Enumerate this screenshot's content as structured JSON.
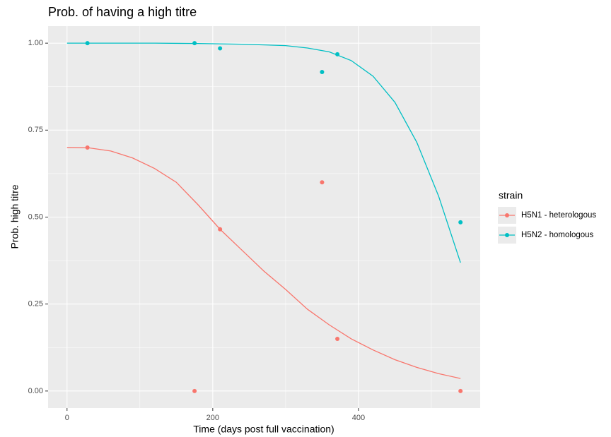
{
  "chart_data": {
    "type": "scatter",
    "title": "Prob. of having a high titre",
    "x_label": "Time (days post full vaccination)",
    "y_label": "Prob. high titre",
    "legend_title": "strain",
    "legend_position": "right",
    "grid": true,
    "xlim": [
      -26,
      567
    ],
    "ylim": [
      -0.049,
      1.049
    ],
    "xticks": [
      0,
      200,
      400
    ],
    "yticks": [
      {
        "value": 0,
        "label": "0.00"
      },
      {
        "value": 0.25,
        "label": "0.25"
      },
      {
        "value": 0.5,
        "label": "0.50"
      },
      {
        "value": 0.75,
        "label": "0.75"
      },
      {
        "value": 1,
        "label": "1.00"
      }
    ],
    "series": [
      {
        "name": "H5N1 - heterologous",
        "color": "#F8766D",
        "x": [
          28,
          175,
          210,
          350,
          371,
          540
        ],
        "values": [
          0.7,
          0.0,
          0.465,
          0.6,
          0.15,
          0.0
        ],
        "fit_x": [
          0,
          30,
          60,
          90,
          120,
          150,
          180,
          210,
          240,
          270,
          300,
          330,
          360,
          390,
          420,
          450,
          480,
          510,
          540
        ],
        "fit_values": [
          0.7,
          0.699,
          0.69,
          0.67,
          0.64,
          0.6,
          0.535,
          0.465,
          0.405,
          0.345,
          0.292,
          0.235,
          0.19,
          0.15,
          0.118,
          0.09,
          0.068,
          0.05,
          0.036
        ]
      },
      {
        "name": "H5N2 - homologous",
        "color": "#00BFC4",
        "x": [
          28,
          175,
          210,
          350,
          371,
          540
        ],
        "values": [
          1.0,
          1.0,
          0.985,
          0.917,
          0.968,
          0.485
        ],
        "fit_x": [
          0,
          60,
          120,
          180,
          240,
          300,
          330,
          360,
          390,
          420,
          450,
          480,
          510,
          540
        ],
        "fit_values": [
          1,
          1,
          1,
          0.999,
          0.997,
          0.993,
          0.986,
          0.975,
          0.95,
          0.905,
          0.83,
          0.715,
          0.56,
          0.369
        ]
      }
    ]
  }
}
